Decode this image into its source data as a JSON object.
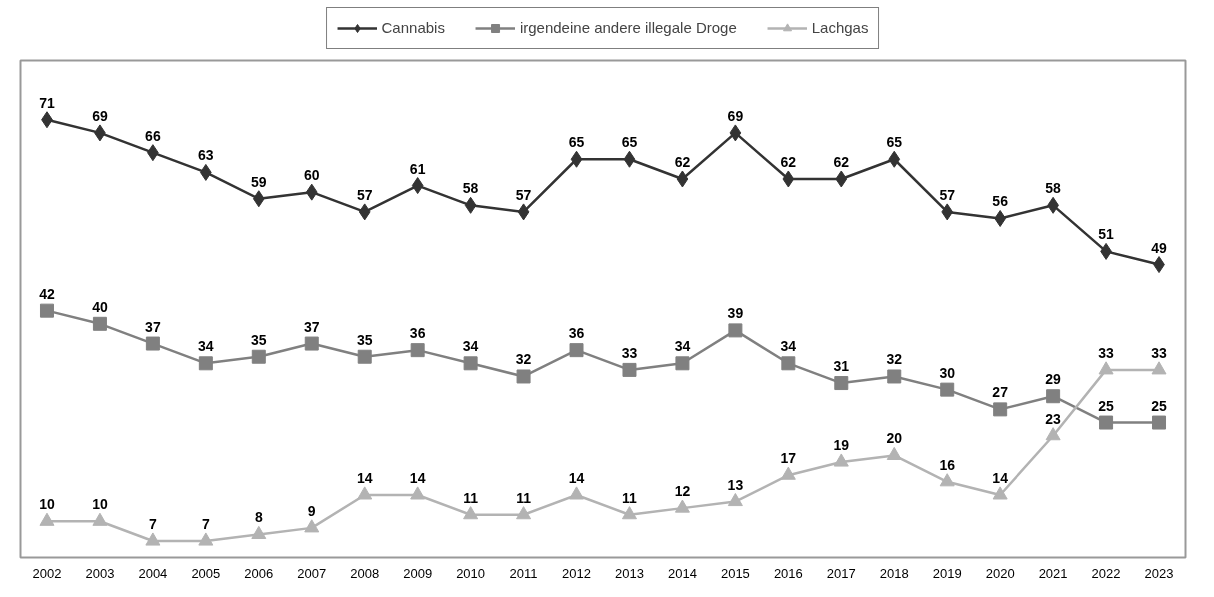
{
  "chart_data": {
    "type": "line",
    "categories": [
      "2002",
      "2003",
      "2004",
      "2005",
      "2006",
      "2007",
      "2008",
      "2009",
      "2010",
      "2011",
      "2012",
      "2013",
      "2014",
      "2015",
      "2016",
      "2017",
      "2018",
      "2019",
      "2020",
      "2021",
      "2022",
      "2023"
    ],
    "ylim": [
      4.5,
      80
    ],
    "grid": false,
    "legend": "top",
    "data_labels": true,
    "tick_labels": "x",
    "line_style": "solid",
    "series": [
      {
        "name": "Cannabis",
        "color": "#333333",
        "marker": "diamond",
        "values": [
          71,
          69,
          66,
          63,
          59,
          60,
          57,
          61,
          58,
          57,
          65,
          65,
          62,
          69,
          62,
          62,
          65,
          57,
          56,
          58,
          51,
          49
        ]
      },
      {
        "name": "irgendeine andere illegale Droge",
        "color": "#808080",
        "marker": "square",
        "values": [
          42,
          40,
          37,
          34,
          35,
          37,
          35,
          36,
          34,
          32,
          36,
          33,
          34,
          39,
          34,
          31,
          32,
          30,
          27,
          29,
          25,
          25
        ]
      },
      {
        "name": "Lachgas",
        "color": "#b3b3b3",
        "marker": "triangle",
        "values": [
          10,
          10,
          7,
          7,
          8,
          9,
          14,
          14,
          11,
          11,
          14,
          11,
          12,
          13,
          17,
          19,
          20,
          16,
          14,
          23,
          33,
          33
        ]
      }
    ]
  }
}
